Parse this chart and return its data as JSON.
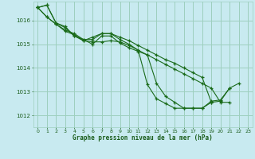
{
  "background_color": "#c8eaf0",
  "grid_color": "#9dcfbe",
  "line_color": "#1a6b1a",
  "marker_color": "#1a6b1a",
  "xlabel": "Graphe pression niveau de la mer (hPa)",
  "xlabel_color": "#1a5c1a",
  "tick_color": "#1a5c1a",
  "ylim": [
    1011.5,
    1016.8
  ],
  "xlim": [
    -0.5,
    23.5
  ],
  "yticks": [
    1012,
    1013,
    1014,
    1015,
    1016
  ],
  "xticks": [
    0,
    1,
    2,
    3,
    4,
    5,
    6,
    7,
    8,
    9,
    10,
    11,
    12,
    13,
    14,
    15,
    16,
    17,
    18,
    19,
    20,
    21,
    22,
    23
  ],
  "series": [
    [
      1016.55,
      1016.65,
      1015.9,
      1015.75,
      1015.35,
      1015.2,
      1015.0,
      1015.35,
      1015.35,
      1015.05,
      1014.85,
      1014.7,
      1014.55,
      1013.35,
      1012.8,
      1012.55,
      1012.3,
      1012.3,
      1012.3,
      1012.55,
      1012.6,
      1013.15,
      1013.35,
      null
    ],
    [
      1016.55,
      1016.65,
      1015.9,
      1015.7,
      1015.35,
      1015.15,
      1015.3,
      1015.45,
      1015.45,
      1015.2,
      1015.0,
      1014.75,
      1013.3,
      1012.7,
      1012.5,
      1012.3,
      1012.3,
      1012.3,
      1012.3,
      1012.6,
      1012.65,
      1013.15,
      null,
      null
    ],
    [
      1016.55,
      1016.15,
      1015.85,
      1015.6,
      1015.45,
      1015.2,
      1015.2,
      1015.45,
      1015.45,
      1015.3,
      1015.15,
      1014.95,
      1014.75,
      1014.55,
      1014.35,
      1014.2,
      1014.0,
      1013.8,
      1013.6,
      1012.55,
      null,
      null,
      null,
      null
    ],
    [
      1016.55,
      1016.15,
      1015.85,
      1015.55,
      1015.4,
      1015.15,
      1015.1,
      1015.1,
      1015.15,
      1015.1,
      1014.95,
      1014.75,
      1014.55,
      1014.35,
      1014.15,
      1013.95,
      1013.75,
      1013.55,
      1013.35,
      1013.15,
      1012.55,
      1012.55,
      null,
      null
    ]
  ]
}
